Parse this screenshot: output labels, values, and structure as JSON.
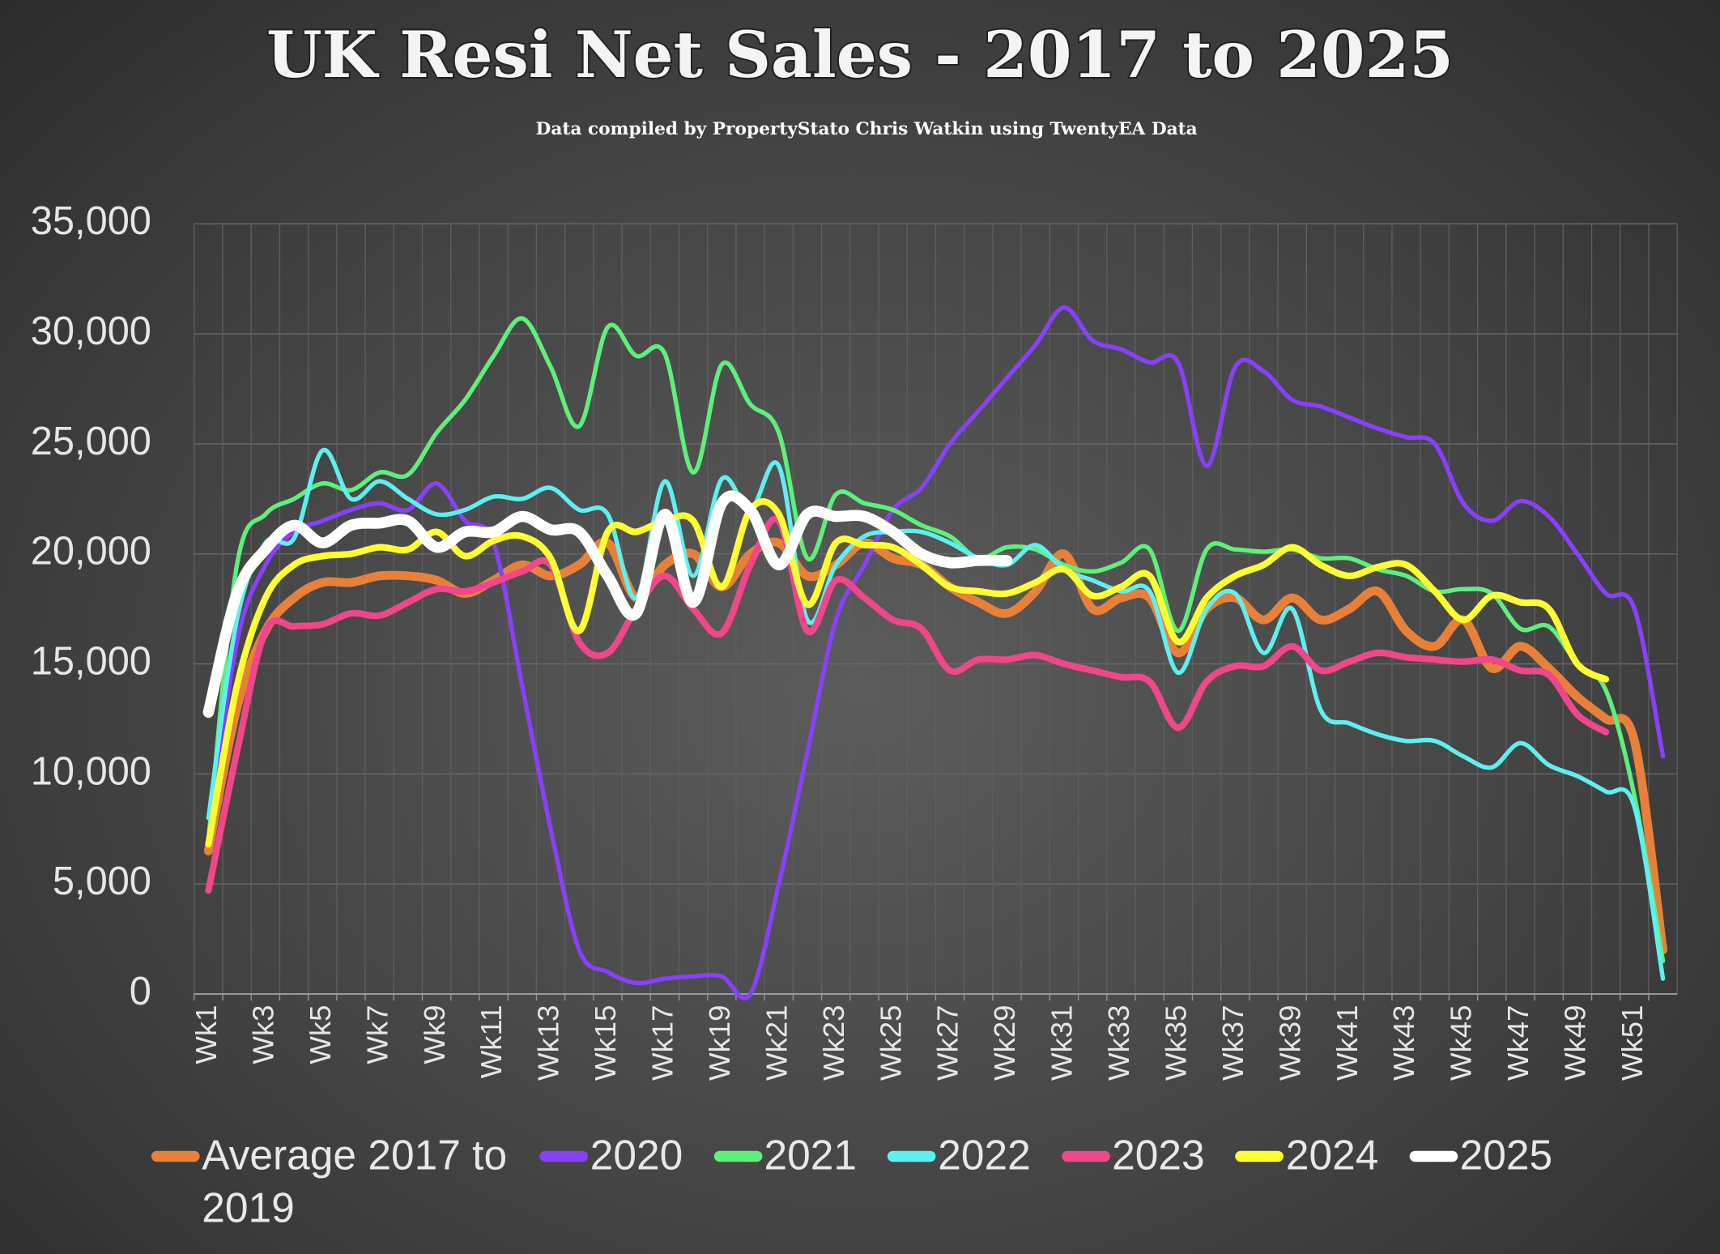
{
  "chart_data": {
    "type": "line",
    "title": "UK  Resi Net Sales - 2017 to 2025",
    "subtitle": "Data compiled by PropertyStato Chris Watkin using TwentyEA Data",
    "categories": [
      "Wk1",
      null,
      "Wk3",
      null,
      "Wk5",
      null,
      "Wk7",
      null,
      "Wk9",
      null,
      "Wk11",
      null,
      "Wk13",
      null,
      "Wk15",
      null,
      "Wk17",
      null,
      "Wk19",
      null,
      "Wk21",
      null,
      "Wk23",
      null,
      "Wk25",
      null,
      "Wk27",
      null,
      "Wk29",
      null,
      "Wk31",
      null,
      "Wk33",
      null,
      "Wk35",
      null,
      "Wk37",
      null,
      "Wk39",
      null,
      "Wk41",
      null,
      "Wk43",
      null,
      "Wk45",
      null,
      "Wk47",
      null,
      "Wk49",
      null,
      "Wk51",
      null
    ],
    "ylim": [
      0,
      35000
    ],
    "yticks": [
      0,
      {
        "value": 5000,
        "label": "5,000"
      },
      {
        "value": 10000,
        "label": "10,000"
      },
      {
        "value": 15000,
        "label": "15,000"
      },
      {
        "value": 20000,
        "label": "20,000"
      },
      {
        "value": 25000,
        "label": "25,000"
      },
      {
        "value": 30000,
        "label": "30,000"
      },
      {
        "value": 35000,
        "label": "35,000"
      }
    ],
    "grid": true,
    "legend": "bottom",
    "series": [
      {
        "name": "Average 2017 to 2019",
        "color": "#e8803a",
        "values": [
          6500,
          13000,
          16500,
          18000,
          18700,
          18700,
          19000,
          19000,
          18800,
          18200,
          18800,
          19500,
          19000,
          19500,
          20500,
          18000,
          19500,
          20000,
          18500,
          20000,
          20500,
          19000,
          19500,
          20500,
          19800,
          19500,
          18500,
          17800,
          17300,
          18300,
          20000,
          17500,
          18000,
          18000,
          15500,
          17500,
          18000,
          17000,
          18000,
          17000,
          17500,
          18300,
          16500,
          15800,
          17000,
          14800,
          15800,
          14800,
          13500,
          12500,
          11500,
          2000
        ]
      },
      {
        "name": "2020",
        "color": "#8a3ffc",
        "values": [
          7000,
          16000,
          19500,
          21000,
          21500,
          22000,
          22300,
          22000,
          23200,
          21500,
          20500,
          14000,
          7500,
          2000,
          1000,
          500,
          700,
          800,
          800,
          0,
          5000,
          11000,
          17000,
          19500,
          22000,
          23000,
          25000,
          26500,
          28000,
          29500,
          31200,
          29700,
          29300,
          28700,
          28700,
          24000,
          28500,
          28300,
          27000,
          26700,
          26200,
          25700,
          25300,
          25000,
          22300,
          21500,
          22400,
          21700,
          20000,
          18200,
          17500,
          10800
        ]
      },
      {
        "name": "2021",
        "color": "#5ef07a",
        "values": [
          7000,
          19500,
          21800,
          22500,
          23200,
          22900,
          23700,
          23600,
          25500,
          27000,
          29000,
          30700,
          28500,
          25800,
          30300,
          29000,
          29100,
          23700,
          28600,
          26800,
          25500,
          19800,
          22700,
          22300,
          22000,
          21300,
          20800,
          19800,
          20300,
          20200,
          19500,
          19200,
          19600,
          20200,
          16500,
          20200,
          20200,
          20100,
          20200,
          19800,
          19800,
          19300,
          19000,
          18300,
          18400,
          18200,
          16600,
          16700,
          15000,
          13800,
          9000,
          1500
        ]
      },
      {
        "name": "2022",
        "color": "#5ef0f0",
        "values": [
          8000,
          17000,
          20500,
          20700,
          24700,
          22500,
          23300,
          22500,
          21800,
          22000,
          22600,
          22500,
          23000,
          22000,
          21800,
          18000,
          23300,
          19000,
          23400,
          22000,
          24000,
          17000,
          19500,
          20800,
          21000,
          21000,
          20500,
          19800,
          19500,
          20400,
          19300,
          18800,
          18300,
          18300,
          14600,
          17500,
          18200,
          15500,
          17500,
          12900,
          12300,
          11800,
          11500,
          11500,
          10800,
          10300,
          11400,
          10400,
          9900,
          9200,
          8500,
          700
        ]
      },
      {
        "name": "2023",
        "color": "#f0468c",
        "values": [
          4700,
          11000,
          16500,
          16700,
          16800,
          17300,
          17200,
          17800,
          18400,
          18300,
          18700,
          19200,
          19500,
          16000,
          15500,
          17500,
          19000,
          17500,
          16400,
          19500,
          21500,
          16500,
          18800,
          18000,
          17000,
          16600,
          14700,
          15200,
          15200,
          15400,
          15000,
          14700,
          14400,
          14200,
          12100,
          14200,
          14900,
          14900,
          15800,
          14700,
          15100,
          15500,
          15300,
          15200,
          15100,
          15200,
          14700,
          14500,
          12700,
          11900,
          null,
          null
        ]
      },
      {
        "name": "2024",
        "color": "#ffff33",
        "values": [
          6800,
          14000,
          18000,
          19500,
          19900,
          20000,
          20300,
          20200,
          21000,
          19900,
          20600,
          20800,
          19800,
          16500,
          21000,
          21000,
          21500,
          21500,
          18500,
          22000,
          21800,
          17700,
          20500,
          20400,
          20300,
          19500,
          18500,
          18300,
          18200,
          18700,
          19300,
          18100,
          18500,
          19000,
          16000,
          18000,
          19000,
          19500,
          20300,
          19500,
          19000,
          19400,
          19500,
          18300,
          17000,
          18100,
          17800,
          17500,
          15000,
          14300,
          null,
          null
        ]
      },
      {
        "name": "2025",
        "color": "#ffffff",
        "values": [
          12800,
          18200,
          20200,
          21300,
          20500,
          21300,
          21400,
          21500,
          20300,
          21000,
          21000,
          21700,
          21100,
          21000,
          19000,
          17300,
          21800,
          17800,
          22300,
          22000,
          19500,
          21800,
          21700,
          21700,
          21000,
          20000,
          19600,
          19700,
          19700,
          null,
          null,
          null,
          null,
          null,
          null,
          null,
          null,
          null,
          null,
          null,
          null,
          null,
          null,
          null,
          null,
          null,
          null,
          null,
          null,
          null,
          null,
          null
        ]
      }
    ]
  }
}
